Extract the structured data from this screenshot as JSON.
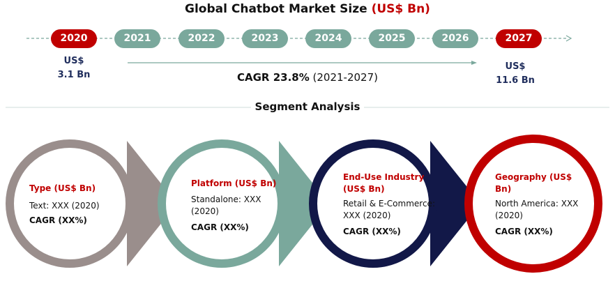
{
  "title": {
    "main": "Global Chatbot Market Size",
    "accent": "(US$ Bn)"
  },
  "timeline": {
    "years": [
      "2020",
      "2021",
      "2022",
      "2023",
      "2024",
      "2025",
      "2026",
      "2027"
    ],
    "start_value": {
      "unit": "US$",
      "amount": "3.1 Bn"
    },
    "end_value": {
      "unit": "US$",
      "amount": "11.6 Bn"
    },
    "cagr_label": "CAGR 23.8%",
    "cagr_period": "(2021-2027)"
  },
  "segment_title": "Segment Analysis",
  "segments": [
    {
      "heading": "Type (US$ Bn)",
      "line1": "Text: XXX (2020)",
      "line2": "",
      "cagr": "CAGR (XX%)",
      "color": "#9a8e8c"
    },
    {
      "heading": "Platform (US$ Bn)",
      "line1": "Standalone: XXX",
      "line2": "(2020)",
      "cagr": "CAGR (XX%)",
      "color": "#7aa89c"
    },
    {
      "heading": "End-Use Industry",
      "heading2": "(US$ Bn)",
      "line1": "Retail & E-Commerce:",
      "line2": "XXX (2020)",
      "cagr": "CAGR (XX%)",
      "color": "#121848"
    },
    {
      "heading": "Geography (US$",
      "heading2": "Bn)",
      "line1": "North America: XXX",
      "line2": "(2020)",
      "cagr": "CAGR (XX%)",
      "color": "#c00000"
    }
  ],
  "colors": {
    "accent_red": "#c00000",
    "teal": "#7aa89c",
    "navy": "#121848",
    "gray": "#9a8e8c"
  }
}
